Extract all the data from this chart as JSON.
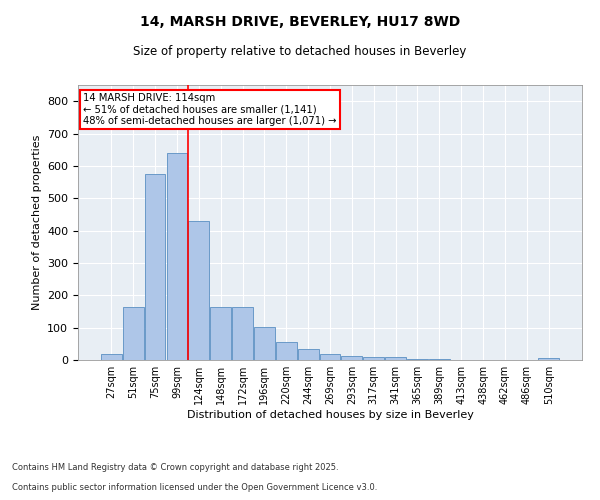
{
  "title": "14, MARSH DRIVE, BEVERLEY, HU17 8WD",
  "subtitle": "Size of property relative to detached houses in Beverley",
  "xlabel": "Distribution of detached houses by size in Beverley",
  "ylabel": "Number of detached properties",
  "bar_color": "#aec6e8",
  "bar_edge_color": "#5a8fc2",
  "background_color": "#e8eef4",
  "grid_color": "#ffffff",
  "categories": [
    "27sqm",
    "51sqm",
    "75sqm",
    "99sqm",
    "124sqm",
    "148sqm",
    "172sqm",
    "196sqm",
    "220sqm",
    "244sqm",
    "269sqm",
    "293sqm",
    "317sqm",
    "341sqm",
    "365sqm",
    "389sqm",
    "413sqm",
    "438sqm",
    "462sqm",
    "486sqm",
    "510sqm"
  ],
  "values": [
    20,
    165,
    575,
    640,
    430,
    165,
    165,
    103,
    57,
    35,
    20,
    13,
    8,
    8,
    3,
    3,
    1,
    0,
    0,
    0,
    5
  ],
  "red_line_x": 3.5,
  "annotation_title": "14 MARSH DRIVE: 114sqm",
  "annotation_line1": "← 51% of detached houses are smaller (1,141)",
  "annotation_line2": "48% of semi-detached houses are larger (1,071) →",
  "ylim": [
    0,
    850
  ],
  "yticks": [
    0,
    100,
    200,
    300,
    400,
    500,
    600,
    700,
    800
  ],
  "footnote1": "Contains HM Land Registry data © Crown copyright and database right 2025.",
  "footnote2": "Contains public sector information licensed under the Open Government Licence v3.0."
}
